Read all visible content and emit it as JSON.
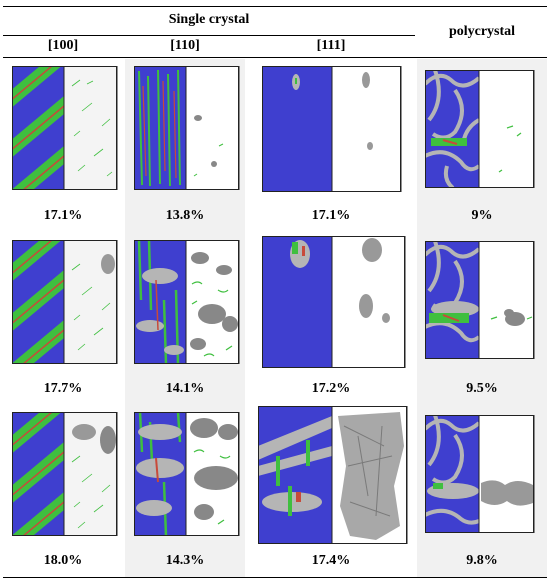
{
  "header": {
    "group_label": "Single crystal",
    "columns": [
      "[100]",
      "[110]",
      "[111]",
      "polycrystal"
    ]
  },
  "rows": [
    {
      "values": [
        "17.1%",
        "13.8%",
        "17.1%",
        "9%"
      ]
    },
    {
      "values": [
        "17.7%",
        "14.1%",
        "17.2%",
        "9.5%"
      ]
    },
    {
      "values": [
        "18.0%",
        "14.3%",
        "17.4%",
        "9.8%"
      ]
    }
  ],
  "colors": {
    "blue": "#3f3fcf",
    "green": "#3fbf3f",
    "red": "#c84a3a",
    "gray": "#b5b5b5",
    "shaded_column": "#f1f1f1"
  }
}
